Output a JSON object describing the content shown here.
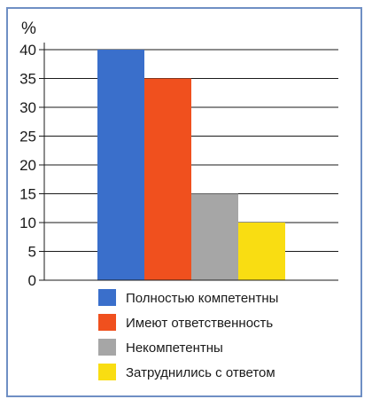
{
  "chart_data": {
    "type": "bar",
    "unit_label": "%",
    "categories": [
      "Полностью компетентны",
      "Имеют ответственность",
      "Некомпетентны",
      "Затруднились с ответом"
    ],
    "values": [
      40,
      35,
      15,
      10
    ],
    "colors": [
      "#3a6fcb",
      "#f0501e",
      "#a6a6a6",
      "#f9dd12"
    ],
    "ylim": [
      0,
      40
    ],
    "yticks": [
      0,
      5,
      10,
      15,
      20,
      25,
      30,
      35,
      40
    ],
    "grid": true,
    "legend_position": "bottom"
  }
}
